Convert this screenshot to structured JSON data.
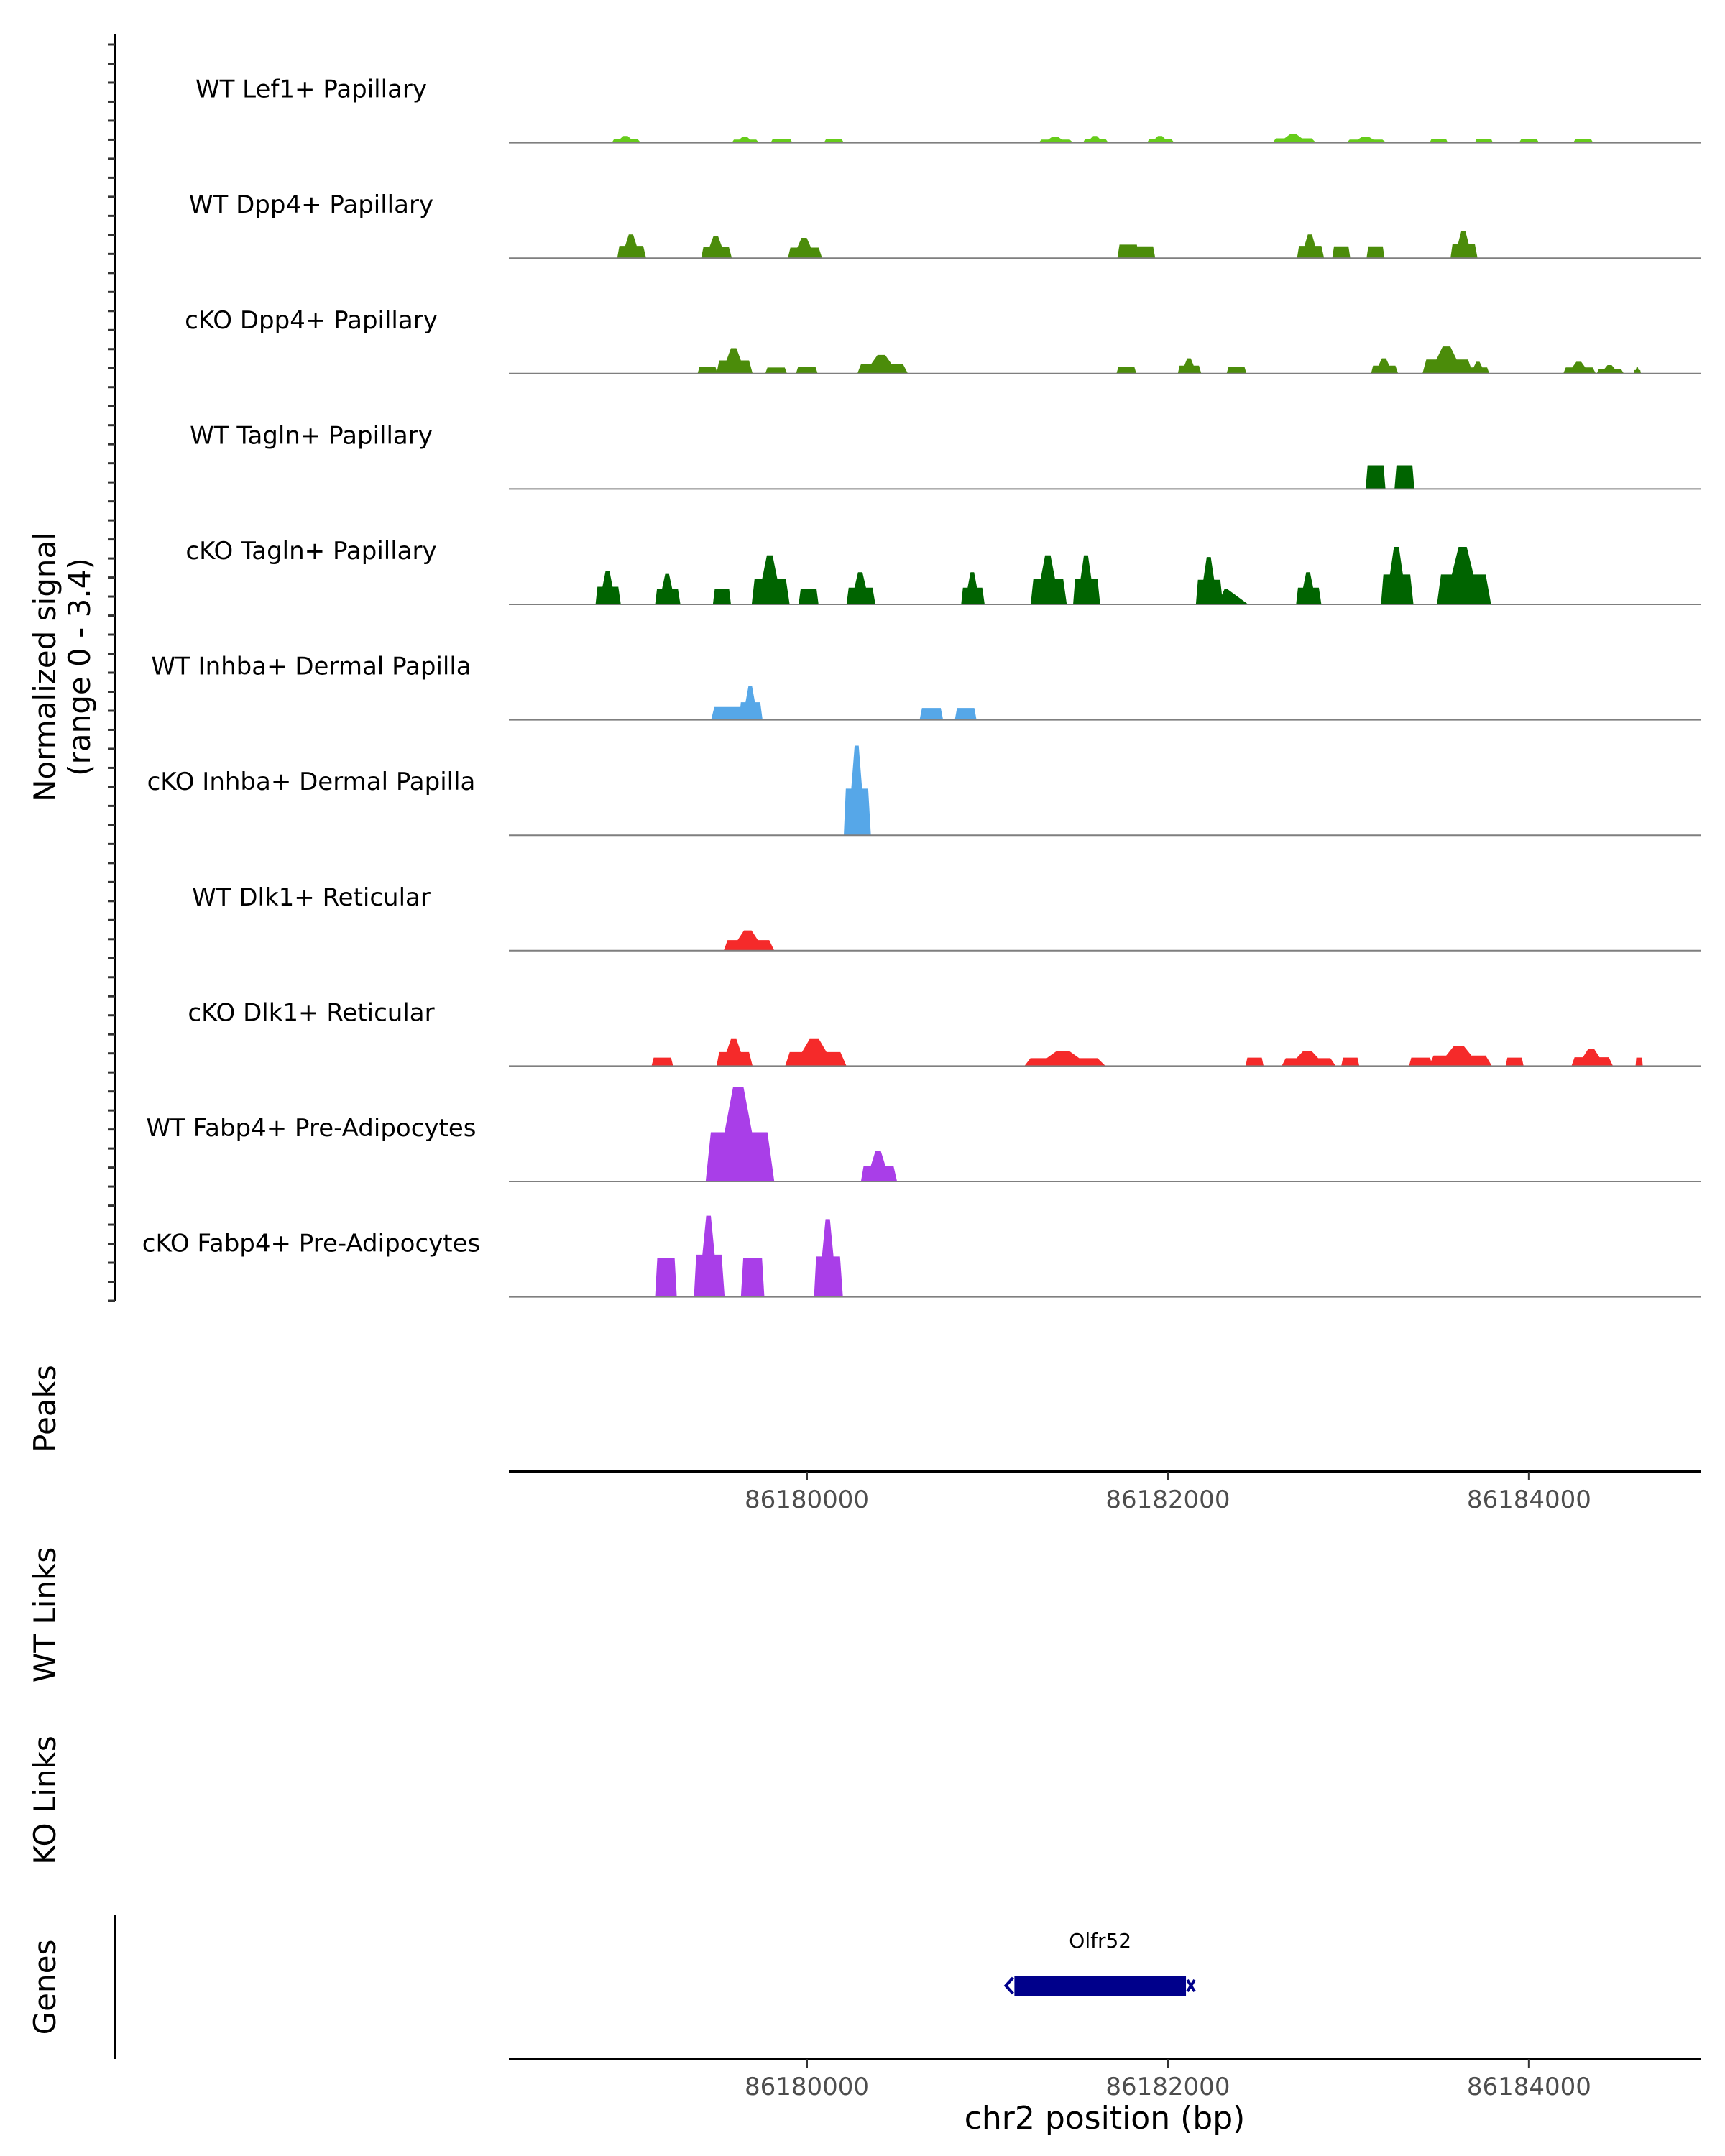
{
  "chart_data": {
    "type": "coverage",
    "chromosome": "chr2",
    "xlabel": "chr2 position (bp)",
    "xlim": [
      86178350,
      86184950
    ],
    "x_ticks": [
      86180000,
      86182000,
      86184000
    ],
    "x_tick_labels": [
      "86180000",
      "86182000",
      "86184000"
    ],
    "ylabel_line1": "Normalized signal",
    "ylabel_line2": "(range 0 - 3.4)",
    "y_range": [
      0,
      3.4
    ],
    "section_labels": {
      "peaks": "Peaks",
      "wt_links": "WT Links",
      "ko_links": "KO Links",
      "genes": "Genes"
    },
    "gene": {
      "name": "Olfr52",
      "start": 86181150,
      "end": 86182100,
      "strand": "-",
      "color": "#00008b"
    },
    "tracks": [
      {
        "name": "WT Lef1+ Papillary",
        "color": "#66cc1a",
        "peaks": [
          [
            86179000,
            0.2,
            160,
            "s"
          ],
          [
            86179660,
            0.18,
            150,
            "s"
          ],
          [
            86179860,
            0.12,
            120,
            "f"
          ],
          [
            86180150,
            0.1,
            110,
            "f"
          ],
          [
            86181380,
            0.18,
            190,
            "s"
          ],
          [
            86181600,
            0.2,
            140,
            "s"
          ],
          [
            86181960,
            0.2,
            150,
            "s"
          ],
          [
            86182700,
            0.25,
            240,
            "s"
          ],
          [
            86183100,
            0.18,
            220,
            "s"
          ],
          [
            86183500,
            0.12,
            100,
            "f"
          ],
          [
            86183750,
            0.12,
            100,
            "f"
          ],
          [
            86184000,
            0.1,
            110,
            "f"
          ],
          [
            86184300,
            0.1,
            110,
            "f"
          ]
        ]
      },
      {
        "name": "WT Dpp4+ Papillary",
        "color": "#4b8c0a",
        "peaks": [
          [
            86179030,
            0.7,
            160,
            "s"
          ],
          [
            86179500,
            0.65,
            170,
            "s"
          ],
          [
            86179990,
            0.6,
            190,
            "s"
          ],
          [
            86181780,
            0.4,
            120,
            "f"
          ],
          [
            86181870,
            0.35,
            120,
            "f"
          ],
          [
            86182790,
            0.7,
            150,
            "s"
          ],
          [
            86182960,
            0.35,
            100,
            "f"
          ],
          [
            86183150,
            0.35,
            100,
            "f"
          ],
          [
            86183640,
            0.8,
            150,
            "s"
          ]
        ]
      },
      {
        "name": "cKO Dpp4+ Papillary",
        "color": "#4b8c0a",
        "peaks": [
          [
            86179450,
            0.2,
            110,
            "f"
          ],
          [
            86179600,
            0.75,
            200,
            "s"
          ],
          [
            86179830,
            0.18,
            120,
            "f"
          ],
          [
            86180000,
            0.2,
            120,
            "f"
          ],
          [
            86180420,
            0.55,
            280,
            "s"
          ],
          [
            86181770,
            0.2,
            110,
            "f"
          ],
          [
            86182120,
            0.45,
            130,
            "s"
          ],
          [
            86182380,
            0.2,
            110,
            "f"
          ],
          [
            86183200,
            0.45,
            150,
            "s"
          ],
          [
            86183550,
            0.8,
            280,
            "s"
          ],
          [
            86183720,
            0.35,
            120,
            "s"
          ],
          [
            86184280,
            0.35,
            180,
            "s"
          ],
          [
            86184450,
            0.25,
            150,
            "s"
          ],
          [
            86184600,
            0.2,
            40,
            "s"
          ]
        ]
      },
      {
        "name": "WT Tagln+ Papillary",
        "color": "#006400",
        "peaks": [
          [
            86183150,
            0.7,
            110,
            "f"
          ],
          [
            86183310,
            0.7,
            110,
            "f"
          ]
        ]
      },
      {
        "name": "cKO Tagln+ Papillary",
        "color": "#006400",
        "peaks": [
          [
            86178900,
            1.0,
            140,
            "s"
          ],
          [
            86179230,
            0.9,
            140,
            "s"
          ],
          [
            86179530,
            0.45,
            100,
            "f"
          ],
          [
            86179800,
            1.45,
            210,
            "s"
          ],
          [
            86180010,
            0.45,
            110,
            "f"
          ],
          [
            86180300,
            0.95,
            160,
            "s"
          ],
          [
            86180920,
            0.95,
            130,
            "s"
          ],
          [
            86181340,
            1.45,
            200,
            "s"
          ],
          [
            86181550,
            1.45,
            150,
            "s"
          ],
          [
            86182230,
            1.4,
            150,
            "s"
          ],
          [
            86182360,
            0.45,
            170,
            "t"
          ],
          [
            86182780,
            0.95,
            140,
            "s"
          ],
          [
            86183270,
            1.7,
            180,
            "s"
          ],
          [
            86183640,
            1.7,
            300,
            "s"
          ]
        ]
      },
      {
        "name": "WT Inhba+ Dermal Papilla",
        "color": "#56a7e8",
        "peaks": [
          [
            86179560,
            0.38,
            180,
            "f"
          ],
          [
            86179690,
            1.0,
            130,
            "s"
          ],
          [
            86180690,
            0.35,
            130,
            "f"
          ],
          [
            86180880,
            0.35,
            120,
            "f"
          ]
        ]
      },
      {
        "name": "cKO Inhba+ Dermal Papilla",
        "color": "#56a7e8",
        "peaks": [
          [
            86180280,
            2.65,
            150,
            "s"
          ]
        ]
      },
      {
        "name": "WT Dlk1+ Reticular",
        "color": "#f52a2a",
        "peaks": [
          [
            86179680,
            0.6,
            280,
            "s"
          ]
        ]
      },
      {
        "name": "cKO Dlk1+ Reticular",
        "color": "#f52a2a",
        "peaks": [
          [
            86179200,
            0.25,
            120,
            "f"
          ],
          [
            86179600,
            0.8,
            200,
            "s"
          ],
          [
            86180050,
            0.8,
            340,
            "s"
          ],
          [
            86181430,
            0.45,
            450,
            "s"
          ],
          [
            86182480,
            0.25,
            100,
            "f"
          ],
          [
            86182780,
            0.45,
            300,
            "s"
          ],
          [
            86183010,
            0.25,
            100,
            "f"
          ],
          [
            86183400,
            0.25,
            130,
            "f"
          ],
          [
            86183620,
            0.6,
            350,
            "s"
          ],
          [
            86183920,
            0.25,
            100,
            "f"
          ],
          [
            86184350,
            0.5,
            230,
            "s"
          ],
          [
            86184610,
            0.25,
            40,
            "f"
          ]
        ]
      },
      {
        "name": "WT Fabp4+ Pre-Adipocytes",
        "color": "#a93ee8",
        "peaks": [
          [
            86179630,
            2.8,
            380,
            "s"
          ],
          [
            86180400,
            0.9,
            200,
            "s"
          ]
        ]
      },
      {
        "name": "cKO Fabp4+ Pre-Adipocytes",
        "color": "#a93ee8",
        "peaks": [
          [
            86179220,
            1.15,
            120,
            "f"
          ],
          [
            86179460,
            2.4,
            170,
            "s"
          ],
          [
            86179700,
            1.15,
            130,
            "f"
          ],
          [
            86180120,
            2.3,
            160,
            "s"
          ]
        ]
      }
    ]
  }
}
